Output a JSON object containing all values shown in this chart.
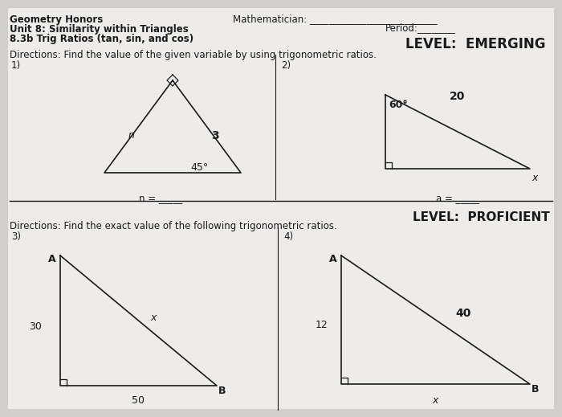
{
  "title_left1": "Geometry Honors",
  "title_left2": "Unit 8: Similarity within Triangles",
  "title_left3": "8.3b Trig Ratios (tan, sin, and cos)",
  "mathematician_label": "Mathematician: ___________________________",
  "period_label": "Period:________",
  "level1": "LEVEL:  EMERGING",
  "directions1": "Directions: Find the value of the given variable by using trigonometric ratios.",
  "prob1_label": "1)",
  "prob2_label": "2)",
  "n_eq": "n = _____",
  "a_eq": "a = _____",
  "level2": "LEVEL:  PROFICIENT",
  "directions2": "Directions: Find the exact value of the following trigonometric ratios.",
  "prob3_label": "3)",
  "prob4_label": "4)",
  "bg_color": "#d0cfcb",
  "paper_color": "#edecea",
  "line_color": "#1a1a1a",
  "t1_angle": "45°",
  "t1_n": "n",
  "t1_3": "3",
  "t2_angle": "60°",
  "t2_20": "20",
  "t2_x": "x",
  "t3_30": "30",
  "t3_50": "50",
  "t3_x": "x",
  "t3_A": "A",
  "t3_B": "B",
  "t4_12": "12",
  "t4_40": "40",
  "t4_x": "x",
  "t4_A": "A",
  "t4_B": "B"
}
